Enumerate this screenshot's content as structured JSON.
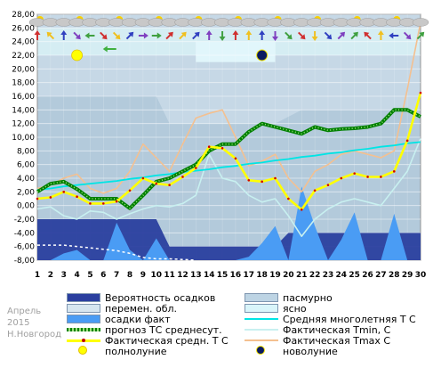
{
  "chart_data": {
    "type": "line",
    "x": [
      1,
      2,
      3,
      4,
      5,
      6,
      7,
      8,
      9,
      10,
      11,
      12,
      13,
      14,
      15,
      16,
      17,
      18,
      19,
      20,
      21,
      22,
      23,
      24,
      25,
      26,
      27,
      28,
      29,
      30
    ],
    "xlim": [
      1,
      30
    ],
    "ylim": [
      -8,
      28
    ],
    "yticks": [
      "-8,00",
      "-6,00",
      "-4,00",
      "-2,00",
      "0,00",
      "2,00",
      "4,00",
      "6,00",
      "8,00",
      "10,00",
      "12,00",
      "14,00",
      "16,00",
      "18,00",
      "20,00",
      "22,00",
      "24,00",
      "26,00",
      "28,00"
    ],
    "xticks": [
      "1",
      "2",
      "3",
      "4",
      "5",
      "6",
      "7",
      "8",
      "9",
      "10",
      "11",
      "12",
      "13",
      "14",
      "15",
      "16",
      "17",
      "18",
      "19",
      "20",
      "21",
      "22",
      "23",
      "24",
      "25",
      "26",
      "27",
      "28",
      "29",
      "30"
    ],
    "series": [
      {
        "name": "Фактическая средн. Т С",
        "color": "#ffff00",
        "values": [
          1.0,
          1.2,
          2.0,
          1.3,
          0.3,
          0.3,
          0.6,
          2.2,
          4.0,
          3.2,
          3.0,
          4.2,
          5.5,
          8.6,
          8.4,
          6.9,
          3.7,
          3.5,
          4.0,
          1.0,
          -0.6,
          2.2,
          3.0,
          4.0,
          4.7,
          4.2,
          4.2,
          5.0,
          9.5,
          16.5
        ]
      },
      {
        "name": "прогноз ТС среднесут.",
        "color": "#008000",
        "values": [
          2.0,
          3.2,
          3.5,
          2.4,
          1.0,
          1.0,
          1.0,
          -0.4,
          1.5,
          3.5,
          4.0,
          5.0,
          6.0,
          8.0,
          9.0,
          9.0,
          10.8,
          12.0,
          11.5,
          11.0,
          10.5,
          11.5,
          11.0,
          11.2,
          11.3,
          11.5,
          12.0,
          14.0,
          14.0,
          13.0
        ]
      },
      {
        "name": "Средняя многолетняя Т С",
        "color": "#00e5e5",
        "values": [
          2.3,
          2.5,
          2.8,
          3.0,
          3.2,
          3.4,
          3.6,
          3.9,
          4.1,
          4.4,
          4.6,
          4.9,
          5.1,
          5.3,
          5.6,
          5.8,
          6.1,
          6.3,
          6.6,
          6.8,
          7.1,
          7.3,
          7.6,
          7.8,
          8.1,
          8.3,
          8.6,
          8.8,
          9.1,
          9.3
        ]
      },
      {
        "name": "Фактическая Tmin, С",
        "color": "#c8f0f0",
        "values": [
          -0.5,
          -0.2,
          -1.5,
          -2.0,
          -0.8,
          -1.0,
          -2.0,
          -1.2,
          -0.5,
          0.0,
          -0.2,
          0.3,
          1.5,
          7.5,
          4.0,
          3.5,
          1.5,
          0.5,
          1.0,
          -1.5,
          -4.5,
          -2.0,
          -0.5,
          0.5,
          1.0,
          0.5,
          0.0,
          2.5,
          5.0,
          9.8
        ]
      },
      {
        "name": "Фактическая Tmax С",
        "color": "#f4c090",
        "values": [
          2.5,
          3.0,
          4.0,
          4.6,
          2.5,
          1.8,
          2.5,
          5.0,
          9.0,
          7.0,
          5.0,
          9.0,
          12.8,
          13.5,
          14.0,
          10.0,
          5.8,
          6.5,
          7.5,
          4.0,
          2.0,
          5.0,
          6.0,
          7.5,
          8.0,
          7.5,
          7.0,
          8.0,
          17.0,
          26.8
        ]
      },
      {
        "name": "Вероятность осадков",
        "color": "#2a3f9f",
        "values": [
          -2.0,
          -2.0,
          -2.0,
          -2.0,
          -2.0,
          -2.0,
          -2.0,
          -2.0,
          -2.0,
          -2.0,
          -6.0,
          -6.0,
          -6.0,
          -6.0,
          -6.0,
          -6.0,
          -6.0,
          -6.0,
          -6.0,
          -4.0,
          -4.0,
          -4.0,
          -4.0,
          -4.0,
          -4.0,
          -4.0,
          -4.0,
          -4.0,
          -4.0,
          -4.0
        ]
      },
      {
        "name": "осадки факт",
        "color": "#4a9cf4",
        "values": [
          -8.0,
          -8.0,
          -7.0,
          -6.5,
          -8.0,
          -8.0,
          -2.5,
          -6.5,
          -8.0,
          -4.8,
          -8.0,
          -8.0,
          -8.0,
          -8.0,
          -8.0,
          -8.0,
          -7.5,
          -5.5,
          -3.0,
          -8.0,
          2.8,
          -3.0,
          -8.0,
          -5.0,
          -1.0,
          -8.0,
          -8.0,
          -1.2,
          -8.0,
          -8.0
        ]
      },
      {
        "name": "перемен. обл.",
        "color": "#bdd4e4",
        "values": [
          16,
          16,
          16,
          15,
          15,
          15,
          15,
          15,
          15,
          15,
          15,
          15,
          15,
          15,
          15,
          15,
          15,
          15,
          15,
          15,
          15,
          15,
          15,
          15,
          15,
          15,
          15,
          15,
          15,
          15
        ]
      },
      {
        "name": "snow_cover",
        "color": "#ffffff",
        "values": [
          -5.8,
          -5.8,
          -5.8,
          -6.0,
          -6.2,
          -6.4,
          -6.6,
          -7.0,
          -7.6,
          -7.8,
          -7.8,
          -7.9,
          -8.0,
          -8.0,
          -8.0,
          -8.0,
          -8.0,
          -8.0,
          -8.0,
          -8.0,
          -8.0,
          -8.0,
          -8.0,
          -8.0,
          -8.0,
          -8.0,
          -8.0,
          -8.0,
          -8.0,
          -8.0
        ]
      }
    ],
    "moon": {
      "full_day": 4,
      "new_day": 18
    },
    "wind_icons": [
      "arrow-up",
      "arrow-left-up",
      "arrow-up",
      "arrow-down-right",
      "arrow-left",
      "arrow-down-right",
      "arrow-down-right",
      "arrow-right-up",
      "arrow-right",
      "arrow-right",
      "arrow-right-up",
      "arrow-right-up",
      "arrow-right-up",
      "arrow-up",
      "arrow-down",
      "arrow-up",
      "arrow-up",
      "arrow-up",
      "arrow-down",
      "arrow-right-down",
      "arrow-right-down",
      "arrow-down",
      "arrow-right-down",
      "arrow-right-up",
      "arrow-right-up",
      "arrow-left-up",
      "arrow-up",
      "arrow-left",
      "arrow-right-down",
      "arrow-right-up"
    ],
    "legend": [
      {
        "label": "Вероятность осадков",
        "kind": "box",
        "color": "#2a3f9f"
      },
      {
        "label": "пасмурно",
        "kind": "box",
        "color": "#bdd4e4"
      },
      {
        "label": "перемен. обл.",
        "kind": "box",
        "color": "#d6e6f0"
      },
      {
        "label": "ясно",
        "kind": "box",
        "color": "#d9f5fa"
      },
      {
        "label": "осадки факт",
        "kind": "box",
        "color": "#4a9cf4"
      },
      {
        "label": "Средняя многолетняя Т С",
        "kind": "line",
        "color": "#00e5e5"
      },
      {
        "label": "прогноз ТС среднесут.",
        "kind": "dotline",
        "color": "#008000"
      },
      {
        "label": "Фактическая Tmin, С",
        "kind": "line",
        "color": "#c8f0f0"
      },
      {
        "label": "Фактическая средн. Т С",
        "kind": "markline",
        "color": "#ffff00"
      },
      {
        "label": "Фактическая Tmax С",
        "kind": "line",
        "color": "#f4c090"
      },
      {
        "label": "полнолуние",
        "kind": "fullmoon",
        "color": "#ffff00"
      },
      {
        "label": "новолуние",
        "kind": "newmoon",
        "color": "#0a1a60"
      }
    ]
  },
  "watermark": {
    "month": "Апрель",
    "year": "2015",
    "city": "Н.Новгород"
  }
}
